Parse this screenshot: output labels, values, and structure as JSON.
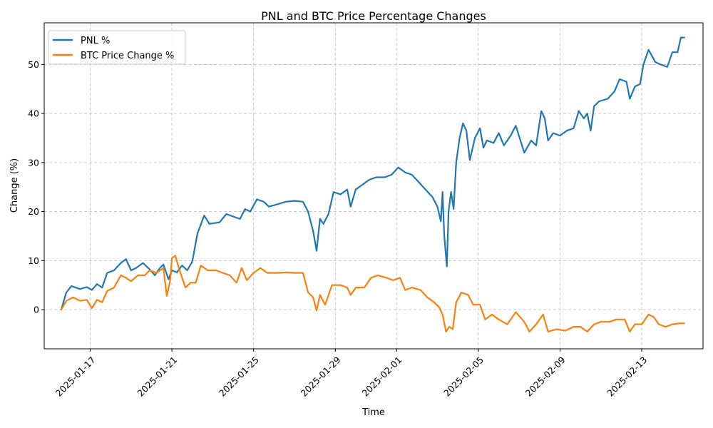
{
  "chart_data": {
    "type": "line",
    "title": "PNL and BTC Price Percentage Changes",
    "xlabel": "Time",
    "ylabel": "Change (%)",
    "xlim": [
      "2025-01-14T18:00",
      "2025-02-16T00:00"
    ],
    "ylim": [
      -8,
      58.5
    ],
    "grid": true,
    "legend_position": "top-left",
    "x_ticks": [
      "2025-01-17",
      "2025-01-21",
      "2025-01-25",
      "2025-01-29",
      "2025-02-01",
      "2025-02-05",
      "2025-02-09",
      "2025-02-13"
    ],
    "y_ticks": [
      0,
      10,
      20,
      30,
      40,
      50
    ],
    "series": [
      {
        "name": "PNL %",
        "color": "#1f77b4",
        "points": [
          [
            "2025-01-15T14:00",
            0.0
          ],
          [
            "2025-01-15T20:00",
            3.5
          ],
          [
            "2025-01-16T02:00",
            4.8
          ],
          [
            "2025-01-16T12:00",
            4.2
          ],
          [
            "2025-01-16T20:00",
            4.6
          ],
          [
            "2025-01-17T02:00",
            4.0
          ],
          [
            "2025-01-17T08:00",
            5.2
          ],
          [
            "2025-01-17T14:00",
            4.5
          ],
          [
            "2025-01-17T20:00",
            7.5
          ],
          [
            "2025-01-18T04:00",
            8.0
          ],
          [
            "2025-01-18T12:00",
            9.5
          ],
          [
            "2025-01-18T18:00",
            10.3
          ],
          [
            "2025-01-19T00:00",
            8.0
          ],
          [
            "2025-01-19T06:00",
            8.5
          ],
          [
            "2025-01-19T14:00",
            9.5
          ],
          [
            "2025-01-19T22:00",
            8.2
          ],
          [
            "2025-01-20T04:00",
            7.0
          ],
          [
            "2025-01-20T10:00",
            8.5
          ],
          [
            "2025-01-20T14:00",
            9.2
          ],
          [
            "2025-01-20T20:00",
            6.2
          ],
          [
            "2025-01-21T00:00",
            8.0
          ],
          [
            "2025-01-21T06:00",
            7.6
          ],
          [
            "2025-01-21T12:00",
            9.0
          ],
          [
            "2025-01-21T18:00",
            8.0
          ],
          [
            "2025-01-22T00:00",
            9.8
          ],
          [
            "2025-01-22T06:00",
            15.5
          ],
          [
            "2025-01-22T14:00",
            19.2
          ],
          [
            "2025-01-22T20:00",
            17.5
          ],
          [
            "2025-01-23T08:00",
            17.8
          ],
          [
            "2025-01-23T16:00",
            19.5
          ],
          [
            "2025-01-24T00:00",
            19.0
          ],
          [
            "2025-01-24T08:00",
            18.5
          ],
          [
            "2025-01-24T14:00",
            20.5
          ],
          [
            "2025-01-24T20:00",
            20.0
          ],
          [
            "2025-01-25T04:00",
            22.5
          ],
          [
            "2025-01-25T12:00",
            22.0
          ],
          [
            "2025-01-25T18:00",
            21.0
          ],
          [
            "2025-01-26T04:00",
            21.5
          ],
          [
            "2025-01-26T14:00",
            22.0
          ],
          [
            "2025-01-27T00:00",
            22.2
          ],
          [
            "2025-01-27T10:00",
            22.0
          ],
          [
            "2025-01-27T16:00",
            20.0
          ],
          [
            "2025-01-27T22:00",
            16.0
          ],
          [
            "2025-01-28T02:00",
            12.0
          ],
          [
            "2025-01-28T06:00",
            18.5
          ],
          [
            "2025-01-28T10:00",
            17.5
          ],
          [
            "2025-01-28T16:00",
            19.5
          ],
          [
            "2025-01-28T22:00",
            24.0
          ],
          [
            "2025-01-29T06:00",
            23.5
          ],
          [
            "2025-01-29T14:00",
            24.5
          ],
          [
            "2025-01-29T18:00",
            21.0
          ],
          [
            "2025-01-30T00:00",
            24.5
          ],
          [
            "2025-01-30T08:00",
            25.5
          ],
          [
            "2025-01-30T16:00",
            26.5
          ],
          [
            "2025-01-31T00:00",
            27.0
          ],
          [
            "2025-01-31T10:00",
            27.0
          ],
          [
            "2025-01-31T18:00",
            27.5
          ],
          [
            "2025-02-01T02:00",
            29.0
          ],
          [
            "2025-02-01T10:00",
            28.0
          ],
          [
            "2025-02-01T18:00",
            27.5
          ],
          [
            "2025-02-02T02:00",
            26.0
          ],
          [
            "2025-02-02T10:00",
            24.5
          ],
          [
            "2025-02-02T18:00",
            23.0
          ],
          [
            "2025-02-03T00:00",
            21.0
          ],
          [
            "2025-02-03T04:00",
            18.0
          ],
          [
            "2025-02-03T06:00",
            24.0
          ],
          [
            "2025-02-03T08:00",
            15.0
          ],
          [
            "2025-02-03T11:00",
            8.8
          ],
          [
            "2025-02-03T13:00",
            20.0
          ],
          [
            "2025-02-03T16:00",
            24.0
          ],
          [
            "2025-02-03T19:00",
            20.5
          ],
          [
            "2025-02-03T22:00",
            30.0
          ],
          [
            "2025-02-04T02:00",
            35.0
          ],
          [
            "2025-02-04T06:00",
            38.0
          ],
          [
            "2025-02-04T10:00",
            36.5
          ],
          [
            "2025-02-04T14:00",
            30.5
          ],
          [
            "2025-02-04T20:00",
            35.0
          ],
          [
            "2025-02-05T02:00",
            37.0
          ],
          [
            "2025-02-05T06:00",
            33.0
          ],
          [
            "2025-02-05T10:00",
            34.5
          ],
          [
            "2025-02-05T18:00",
            34.0
          ],
          [
            "2025-02-06T00:00",
            36.0
          ],
          [
            "2025-02-06T06:00",
            33.5
          ],
          [
            "2025-02-06T14:00",
            35.5
          ],
          [
            "2025-02-06T20:00",
            37.5
          ],
          [
            "2025-02-07T06:00",
            32.0
          ],
          [
            "2025-02-07T14:00",
            34.5
          ],
          [
            "2025-02-07T20:00",
            33.5
          ],
          [
            "2025-02-08T02:00",
            40.5
          ],
          [
            "2025-02-08T06:00",
            39.0
          ],
          [
            "2025-02-08T10:00",
            34.5
          ],
          [
            "2025-02-08T16:00",
            36.0
          ],
          [
            "2025-02-09T00:00",
            35.5
          ],
          [
            "2025-02-09T08:00",
            36.5
          ],
          [
            "2025-02-09T16:00",
            37.0
          ],
          [
            "2025-02-09T22:00",
            40.5
          ],
          [
            "2025-02-10T04:00",
            39.0
          ],
          [
            "2025-02-10T08:00",
            40.0
          ],
          [
            "2025-02-10T12:00",
            36.5
          ],
          [
            "2025-02-10T16:00",
            41.5
          ],
          [
            "2025-02-10T22:00",
            42.5
          ],
          [
            "2025-02-11T08:00",
            43.0
          ],
          [
            "2025-02-11T16:00",
            44.5
          ],
          [
            "2025-02-11T22:00",
            47.0
          ],
          [
            "2025-02-12T06:00",
            46.5
          ],
          [
            "2025-02-12T10:00",
            43.0
          ],
          [
            "2025-02-12T16:00",
            45.5
          ],
          [
            "2025-02-12T22:00",
            46.0
          ],
          [
            "2025-02-13T02:00",
            50.0
          ],
          [
            "2025-02-13T08:00",
            53.0
          ],
          [
            "2025-02-13T16:00",
            50.5
          ],
          [
            "2025-02-13T22:00",
            50.0
          ],
          [
            "2025-02-14T06:00",
            49.5
          ],
          [
            "2025-02-14T12:00",
            52.5
          ],
          [
            "2025-02-14T18:00",
            52.5
          ],
          [
            "2025-02-14T22:00",
            55.5
          ],
          [
            "2025-02-15T02:00",
            55.5
          ]
        ]
      },
      {
        "name": "BTC Price Change %",
        "color": "#ff7f0e",
        "points": [
          [
            "2025-01-15T14:00",
            0.0
          ],
          [
            "2025-01-15T20:00",
            1.8
          ],
          [
            "2025-01-16T04:00",
            2.5
          ],
          [
            "2025-01-16T12:00",
            1.8
          ],
          [
            "2025-01-16T20:00",
            2.0
          ],
          [
            "2025-01-17T02:00",
            0.3
          ],
          [
            "2025-01-17T08:00",
            2.0
          ],
          [
            "2025-01-17T14:00",
            1.5
          ],
          [
            "2025-01-17T20:00",
            3.8
          ],
          [
            "2025-01-18T04:00",
            4.5
          ],
          [
            "2025-01-18T12:00",
            7.0
          ],
          [
            "2025-01-18T18:00",
            6.5
          ],
          [
            "2025-01-19T00:00",
            5.8
          ],
          [
            "2025-01-19T08:00",
            7.0
          ],
          [
            "2025-01-19T16:00",
            7.0
          ],
          [
            "2025-01-19T22:00",
            8.0
          ],
          [
            "2025-01-20T06:00",
            7.5
          ],
          [
            "2025-01-20T14:00",
            8.5
          ],
          [
            "2025-01-20T18:00",
            2.8
          ],
          [
            "2025-01-20T22:00",
            6.0
          ],
          [
            "2025-01-21T00:00",
            10.5
          ],
          [
            "2025-01-21T04:00",
            11.0
          ],
          [
            "2025-01-21T10:00",
            7.5
          ],
          [
            "2025-01-21T16:00",
            4.5
          ],
          [
            "2025-01-21T22:00",
            5.5
          ],
          [
            "2025-01-22T04:00",
            5.5
          ],
          [
            "2025-01-22T10:00",
            9.0
          ],
          [
            "2025-01-22T18:00",
            8.0
          ],
          [
            "2025-01-23T04:00",
            8.0
          ],
          [
            "2025-01-23T12:00",
            7.5
          ],
          [
            "2025-01-23T20:00",
            7.0
          ],
          [
            "2025-01-24T04:00",
            5.5
          ],
          [
            "2025-01-24T10:00",
            8.5
          ],
          [
            "2025-01-24T16:00",
            6.0
          ],
          [
            "2025-01-25T00:00",
            7.5
          ],
          [
            "2025-01-25T08:00",
            8.5
          ],
          [
            "2025-01-25T16:00",
            7.5
          ],
          [
            "2025-01-26T04:00",
            7.5
          ],
          [
            "2025-01-26T14:00",
            7.6
          ],
          [
            "2025-01-27T00:00",
            7.5
          ],
          [
            "2025-01-27T10:00",
            7.5
          ],
          [
            "2025-01-27T16:00",
            3.5
          ],
          [
            "2025-01-27T22:00",
            2.5
          ],
          [
            "2025-01-28T02:00",
            -0.2
          ],
          [
            "2025-01-28T06:00",
            3.0
          ],
          [
            "2025-01-28T12:00",
            1.0
          ],
          [
            "2025-01-28T20:00",
            5.0
          ],
          [
            "2025-01-29T06:00",
            5.0
          ],
          [
            "2025-01-29T14:00",
            4.5
          ],
          [
            "2025-01-29T18:00",
            3.0
          ],
          [
            "2025-01-30T00:00",
            4.5
          ],
          [
            "2025-01-30T10:00",
            4.5
          ],
          [
            "2025-01-30T18:00",
            6.5
          ],
          [
            "2025-01-31T02:00",
            7.0
          ],
          [
            "2025-01-31T12:00",
            6.5
          ],
          [
            "2025-01-31T20:00",
            6.0
          ],
          [
            "2025-02-01T04:00",
            6.5
          ],
          [
            "2025-02-01T10:00",
            4.0
          ],
          [
            "2025-02-01T18:00",
            4.5
          ],
          [
            "2025-02-02T04:00",
            4.0
          ],
          [
            "2025-02-02T12:00",
            2.5
          ],
          [
            "2025-02-02T20:00",
            1.5
          ],
          [
            "2025-02-03T02:00",
            0.5
          ],
          [
            "2025-02-03T06:00",
            -1.0
          ],
          [
            "2025-02-03T10:00",
            -4.5
          ],
          [
            "2025-02-03T14:00",
            -3.5
          ],
          [
            "2025-02-03T18:00",
            -4.0
          ],
          [
            "2025-02-03T22:00",
            1.5
          ],
          [
            "2025-02-04T04:00",
            3.5
          ],
          [
            "2025-02-04T12:00",
            3.0
          ],
          [
            "2025-02-04T18:00",
            1.0
          ],
          [
            "2025-02-05T02:00",
            1.0
          ],
          [
            "2025-02-05T08:00",
            -2.0
          ],
          [
            "2025-02-05T16:00",
            -1.0
          ],
          [
            "2025-02-06T00:00",
            -2.0
          ],
          [
            "2025-02-06T10:00",
            -3.0
          ],
          [
            "2025-02-06T20:00",
            -0.5
          ],
          [
            "2025-02-07T06:00",
            -2.5
          ],
          [
            "2025-02-07T12:00",
            -4.5
          ],
          [
            "2025-02-07T20:00",
            -3.0
          ],
          [
            "2025-02-08T04:00",
            -1.0
          ],
          [
            "2025-02-08T10:00",
            -4.5
          ],
          [
            "2025-02-08T20:00",
            -4.0
          ],
          [
            "2025-02-09T06:00",
            -4.3
          ],
          [
            "2025-02-09T16:00",
            -3.5
          ],
          [
            "2025-02-10T00:00",
            -3.5
          ],
          [
            "2025-02-10T08:00",
            -4.5
          ],
          [
            "2025-02-10T16:00",
            -3.0
          ],
          [
            "2025-02-11T00:00",
            -2.5
          ],
          [
            "2025-02-11T10:00",
            -2.5
          ],
          [
            "2025-02-11T18:00",
            -2.0
          ],
          [
            "2025-02-12T04:00",
            -2.0
          ],
          [
            "2025-02-12T10:00",
            -4.5
          ],
          [
            "2025-02-12T16:00",
            -3.0
          ],
          [
            "2025-02-13T00:00",
            -3.0
          ],
          [
            "2025-02-13T08:00",
            -1.0
          ],
          [
            "2025-02-13T14:00",
            -1.5
          ],
          [
            "2025-02-13T20:00",
            -3.0
          ],
          [
            "2025-02-14T04:00",
            -3.5
          ],
          [
            "2025-02-14T12:00",
            -3.0
          ],
          [
            "2025-02-14T20:00",
            -2.8
          ],
          [
            "2025-02-15T02:00",
            -2.8
          ]
        ]
      }
    ]
  }
}
